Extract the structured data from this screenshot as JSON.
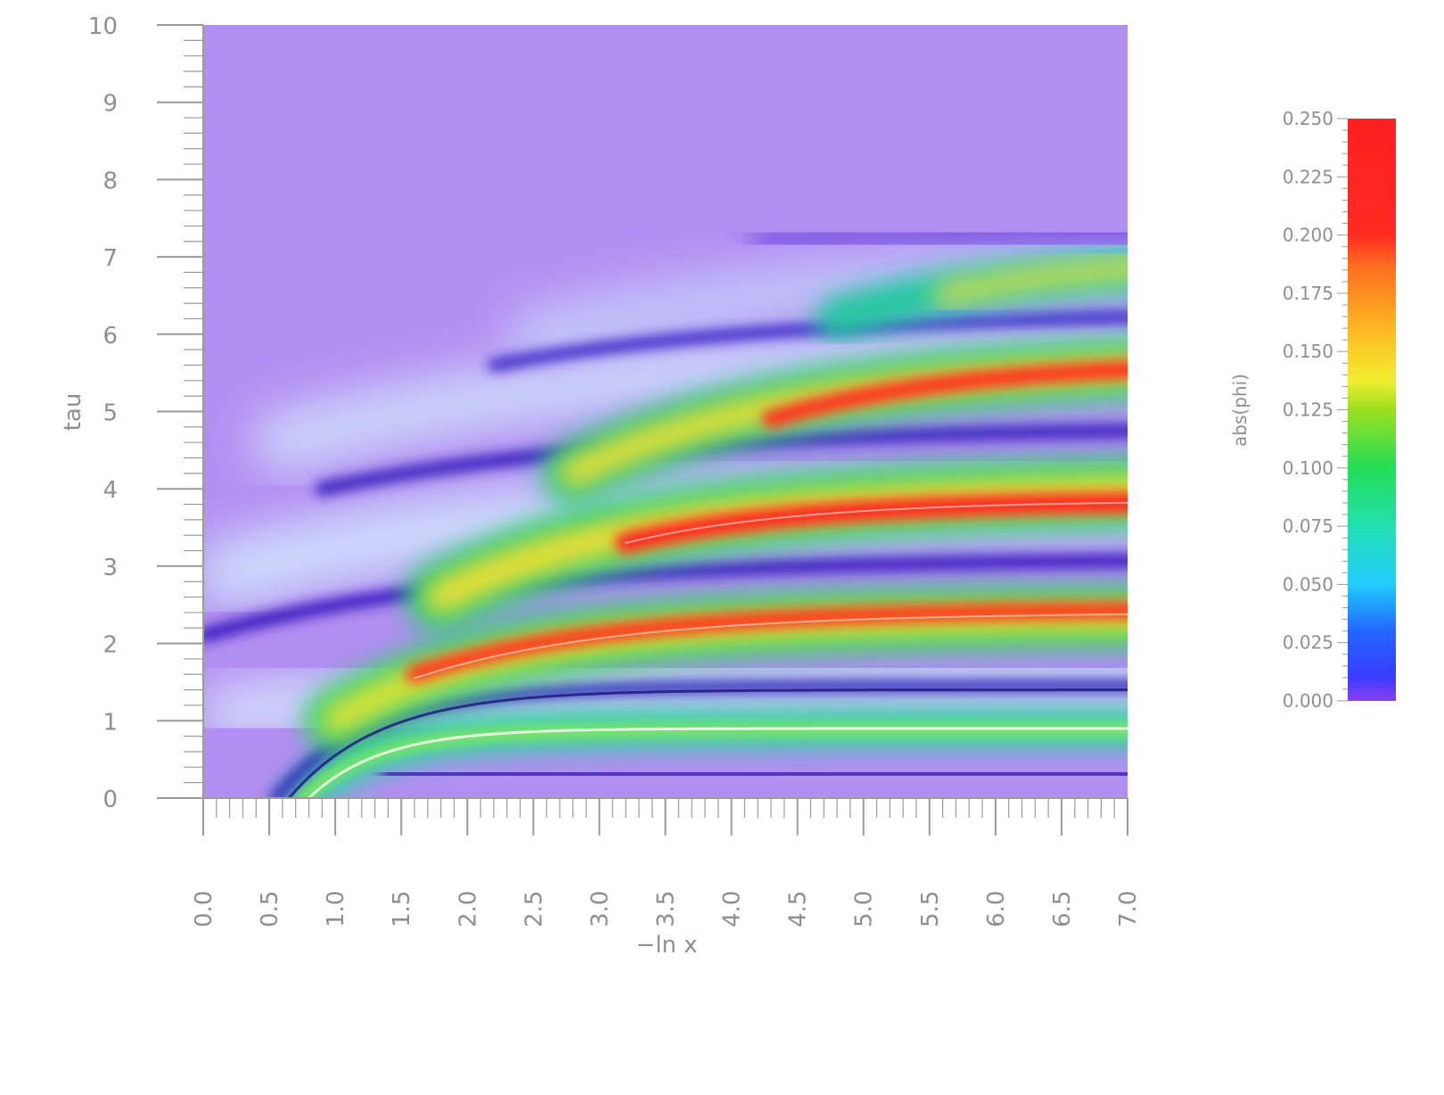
{
  "chart_data": {
    "type": "heatmap",
    "title": "",
    "xlabel": "−ln x",
    "ylabel": "tau",
    "xlim": [
      0.0,
      7.0
    ],
    "ylim": [
      0,
      10
    ],
    "x_ticks": [
      "0.0",
      "0.5",
      "1.0",
      "1.5",
      "2.0",
      "2.5",
      "3.0",
      "3.5",
      "4.0",
      "4.5",
      "5.0",
      "5.5",
      "6.0",
      "6.5",
      "7.0"
    ],
    "y_ticks": [
      "0",
      "1",
      "2",
      "3",
      "4",
      "5",
      "6",
      "7",
      "8",
      "9",
      "10"
    ],
    "colorbar": {
      "label": "abs(phi)",
      "range": [
        0.0,
        0.25
      ],
      "ticks": [
        "0.000",
        "0.025",
        "0.050",
        "0.075",
        "0.100",
        "0.125",
        "0.150",
        "0.175",
        "0.200",
        "0.225",
        "0.250"
      ],
      "colormap": [
        "#8a3ff0",
        "#2244ff",
        "#22ddff",
        "#22e08a",
        "#3ce020",
        "#f2ee30",
        "#ff9f20",
        "#ff3a20",
        "#ff2020"
      ]
    },
    "grid": false,
    "legend": "none",
    "background_value_color": "#b38ef2"
  }
}
